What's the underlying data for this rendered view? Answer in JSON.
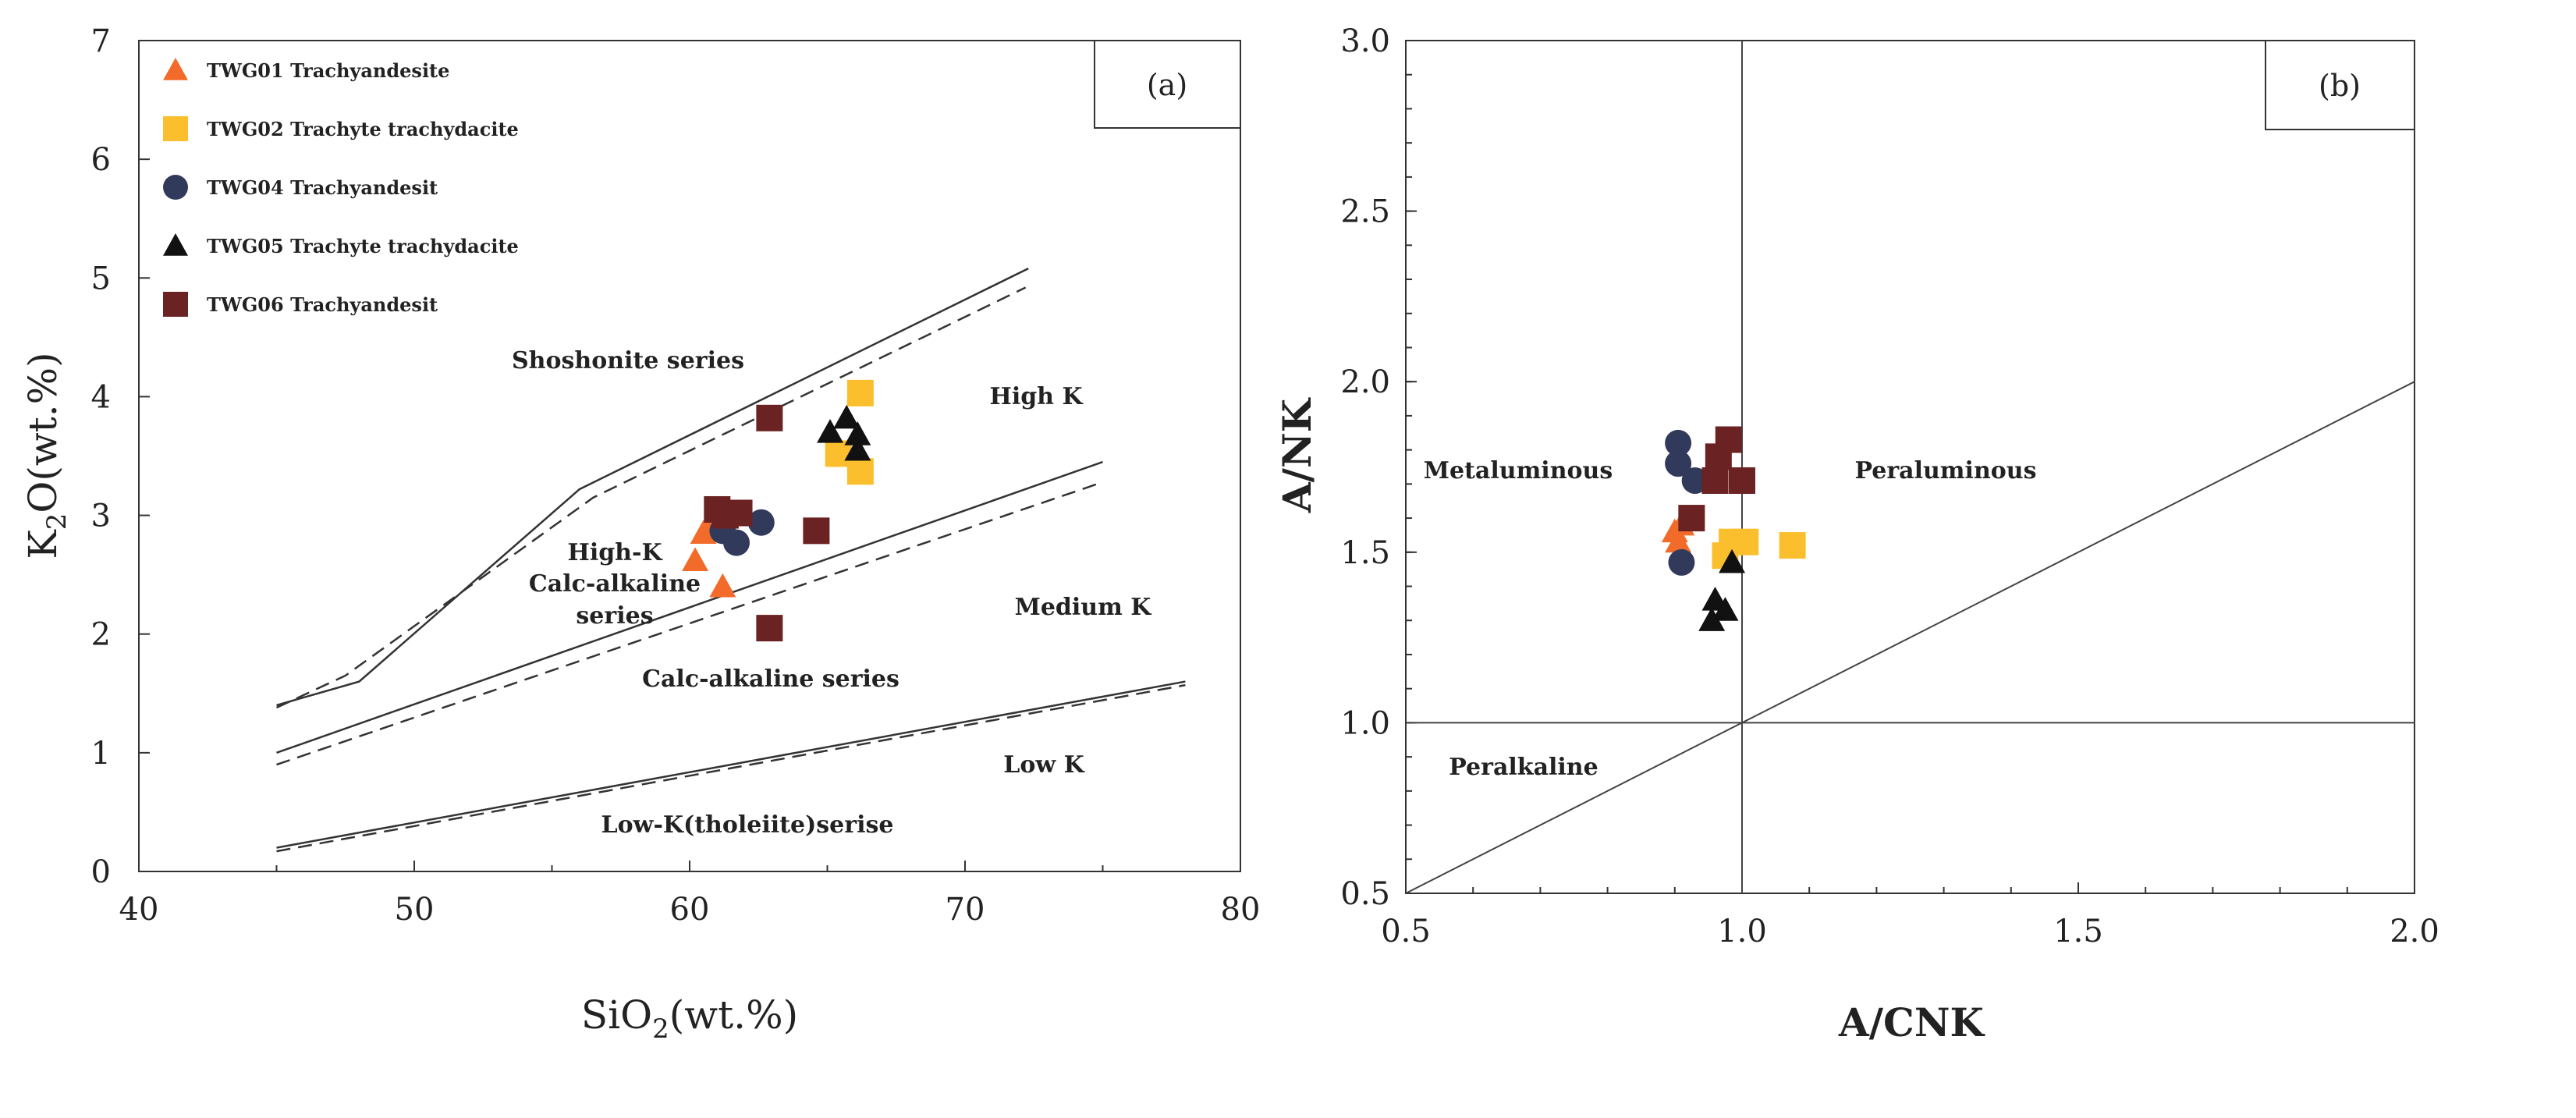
{
  "figure": {
    "panels": [
      {
        "panel_label": "(a)",
        "x_axis_title": {
          "main": "SiO",
          "sub": "2",
          "tail": "(wt.%)"
        },
        "y_axis_title": {
          "main": "K",
          "sub": "2",
          "tail": "O(wt.%)"
        },
        "regions": {
          "shoshonite": "Shoshonite series",
          "high_k": "High K",
          "high_k_calc_line1": "High-K",
          "high_k_calc_line2": "Calc-alkaline",
          "high_k_calc_line3": "series",
          "medium_k": "Medium K",
          "calc_alkaline": "Calc-alkaline series",
          "low_k": "Low K",
          "low_k_tholeiite": "Low-K(tholeiite)serise"
        }
      },
      {
        "panel_label": "(b)",
        "x_axis_title": "A/CNK",
        "y_axis_title": "A/NK",
        "regions": {
          "metaluminous": "Metaluminous",
          "peraluminous": "Peraluminous",
          "peralkaline": "Peralkaline"
        }
      }
    ]
  },
  "colors": {
    "TWG01": "#f26b2a",
    "TWG02": "#fbbf2e",
    "TWG04": "#323a5c",
    "TWG05": "#111111",
    "TWG06": "#6b2222",
    "axis": "#333333"
  },
  "chart_data": [
    {
      "type": "scatter",
      "title": "",
      "xlabel": "SiO2(wt.%)",
      "ylabel": "K2O(wt.%)",
      "xlim": [
        40,
        80
      ],
      "ylim": [
        0,
        7
      ],
      "xticks": [
        40,
        50,
        60,
        70,
        80
      ],
      "yticks": [
        0,
        1,
        2,
        3,
        4,
        5,
        6,
        7
      ],
      "legend_position": "top-left",
      "series": [
        {
          "name": "TWG01 Trachyandesite",
          "marker": "triangle",
          "color_key": "TWG01",
          "points": [
            [
              60.2,
              2.62
            ],
            [
              60.5,
              2.85
            ],
            [
              60.8,
              2.92
            ],
            [
              61.2,
              2.4
            ]
          ]
        },
        {
          "name": "TWG02 Trachyte trachydacite",
          "marker": "square",
          "color_key": "TWG02",
          "points": [
            [
              65.4,
              3.52
            ],
            [
              66.2,
              4.03
            ],
            [
              66.2,
              3.37
            ]
          ]
        },
        {
          "name": "TWG04 Trachyandesit",
          "marker": "circle",
          "color_key": "TWG04",
          "points": [
            [
              61.2,
              2.87
            ],
            [
              61.7,
              2.77
            ],
            [
              62.6,
              2.94
            ]
          ]
        },
        {
          "name": "TWG05 Trachyte trachydacite",
          "marker": "triangle",
          "color_key": "TWG05",
          "points": [
            [
              65.1,
              3.7
            ],
            [
              65.7,
              3.82
            ],
            [
              66.1,
              3.68
            ],
            [
              66.1,
              3.55
            ]
          ]
        },
        {
          "name": "TWG06 Trachyandesit",
          "marker": "square",
          "color_key": "TWG06",
          "points": [
            [
              62.9,
              3.82
            ],
            [
              61.0,
              3.05
            ],
            [
              61.3,
              3.0
            ],
            [
              61.8,
              3.02
            ],
            [
              64.6,
              2.87
            ],
            [
              62.9,
              2.05
            ]
          ]
        }
      ],
      "boundaries": {
        "solid": [
          [
            [
              45,
              1.4
            ],
            [
              48,
              1.6
            ],
            [
              56,
              3.22
            ],
            [
              72.3,
              5.08
            ]
          ],
          [
            [
              45,
              1.0
            ],
            [
              75,
              3.45
            ]
          ],
          [
            [
              45,
              0.2
            ],
            [
              78,
              1.6
            ]
          ]
        ],
        "dashed": [
          [
            [
              45,
              1.38
            ],
            [
              47.5,
              1.65
            ],
            [
              56.5,
              3.15
            ],
            [
              72.2,
              4.92
            ]
          ],
          [
            [
              45,
              0.9
            ],
            [
              75,
              3.28
            ]
          ],
          [
            [
              45,
              0.17
            ],
            [
              78,
              1.57
            ]
          ]
        ]
      }
    },
    {
      "type": "scatter",
      "title": "",
      "xlabel": "A/CNK",
      "ylabel": "A/NK",
      "xlim": [
        0.5,
        2.0
      ],
      "ylim": [
        0.5,
        3.0
      ],
      "xticks": [
        0.5,
        1.0,
        1.5,
        2.0
      ],
      "yticks": [
        0.5,
        1.0,
        1.5,
        2.0,
        2.5,
        3.0
      ],
      "xtick_labels": [
        "0.5",
        "1.0",
        "1.5",
        "2.0"
      ],
      "ytick_labels": [
        "0.5",
        "1.0",
        "1.5",
        "2.0",
        "2.5",
        "3.0"
      ],
      "series": [
        {
          "name": "TWG01 Trachyandesite",
          "marker": "triangle",
          "color_key": "TWG01",
          "points": [
            [
              0.9,
              1.56
            ],
            [
              0.905,
              1.53
            ],
            [
              0.91,
              1.58
            ]
          ]
        },
        {
          "name": "TWG02 Trachyte trachydacite",
          "marker": "square",
          "color_key": "TWG02",
          "points": [
            [
              0.985,
              1.53
            ],
            [
              1.005,
              1.53
            ],
            [
              1.075,
              1.52
            ],
            [
              0.975,
              1.49
            ]
          ]
        },
        {
          "name": "TWG04 Trachyandesit",
          "marker": "circle",
          "color_key": "TWG04",
          "points": [
            [
              0.905,
              1.82
            ],
            [
              0.905,
              1.76
            ],
            [
              0.93,
              1.71
            ],
            [
              0.91,
              1.47
            ]
          ]
        },
        {
          "name": "TWG05 Trachyte trachydacite",
          "marker": "triangle",
          "color_key": "TWG05",
          "points": [
            [
              0.985,
              1.47
            ],
            [
              0.96,
              1.36
            ],
            [
              0.975,
              1.33
            ],
            [
              0.955,
              1.3
            ]
          ]
        },
        {
          "name": "TWG06 Trachyandesit",
          "marker": "square",
          "color_key": "TWG06",
          "points": [
            [
              0.98,
              1.83
            ],
            [
              0.965,
              1.78
            ],
            [
              0.96,
              1.71
            ],
            [
              1.0,
              1.71
            ],
            [
              0.925,
              1.6
            ]
          ]
        }
      ],
      "reference_lines": {
        "vertical_x": 1.0,
        "horizontal_y": 1.0,
        "diagonal": [
          [
            0.5,
            0.5
          ],
          [
            2.0,
            2.0
          ]
        ]
      }
    }
  ]
}
